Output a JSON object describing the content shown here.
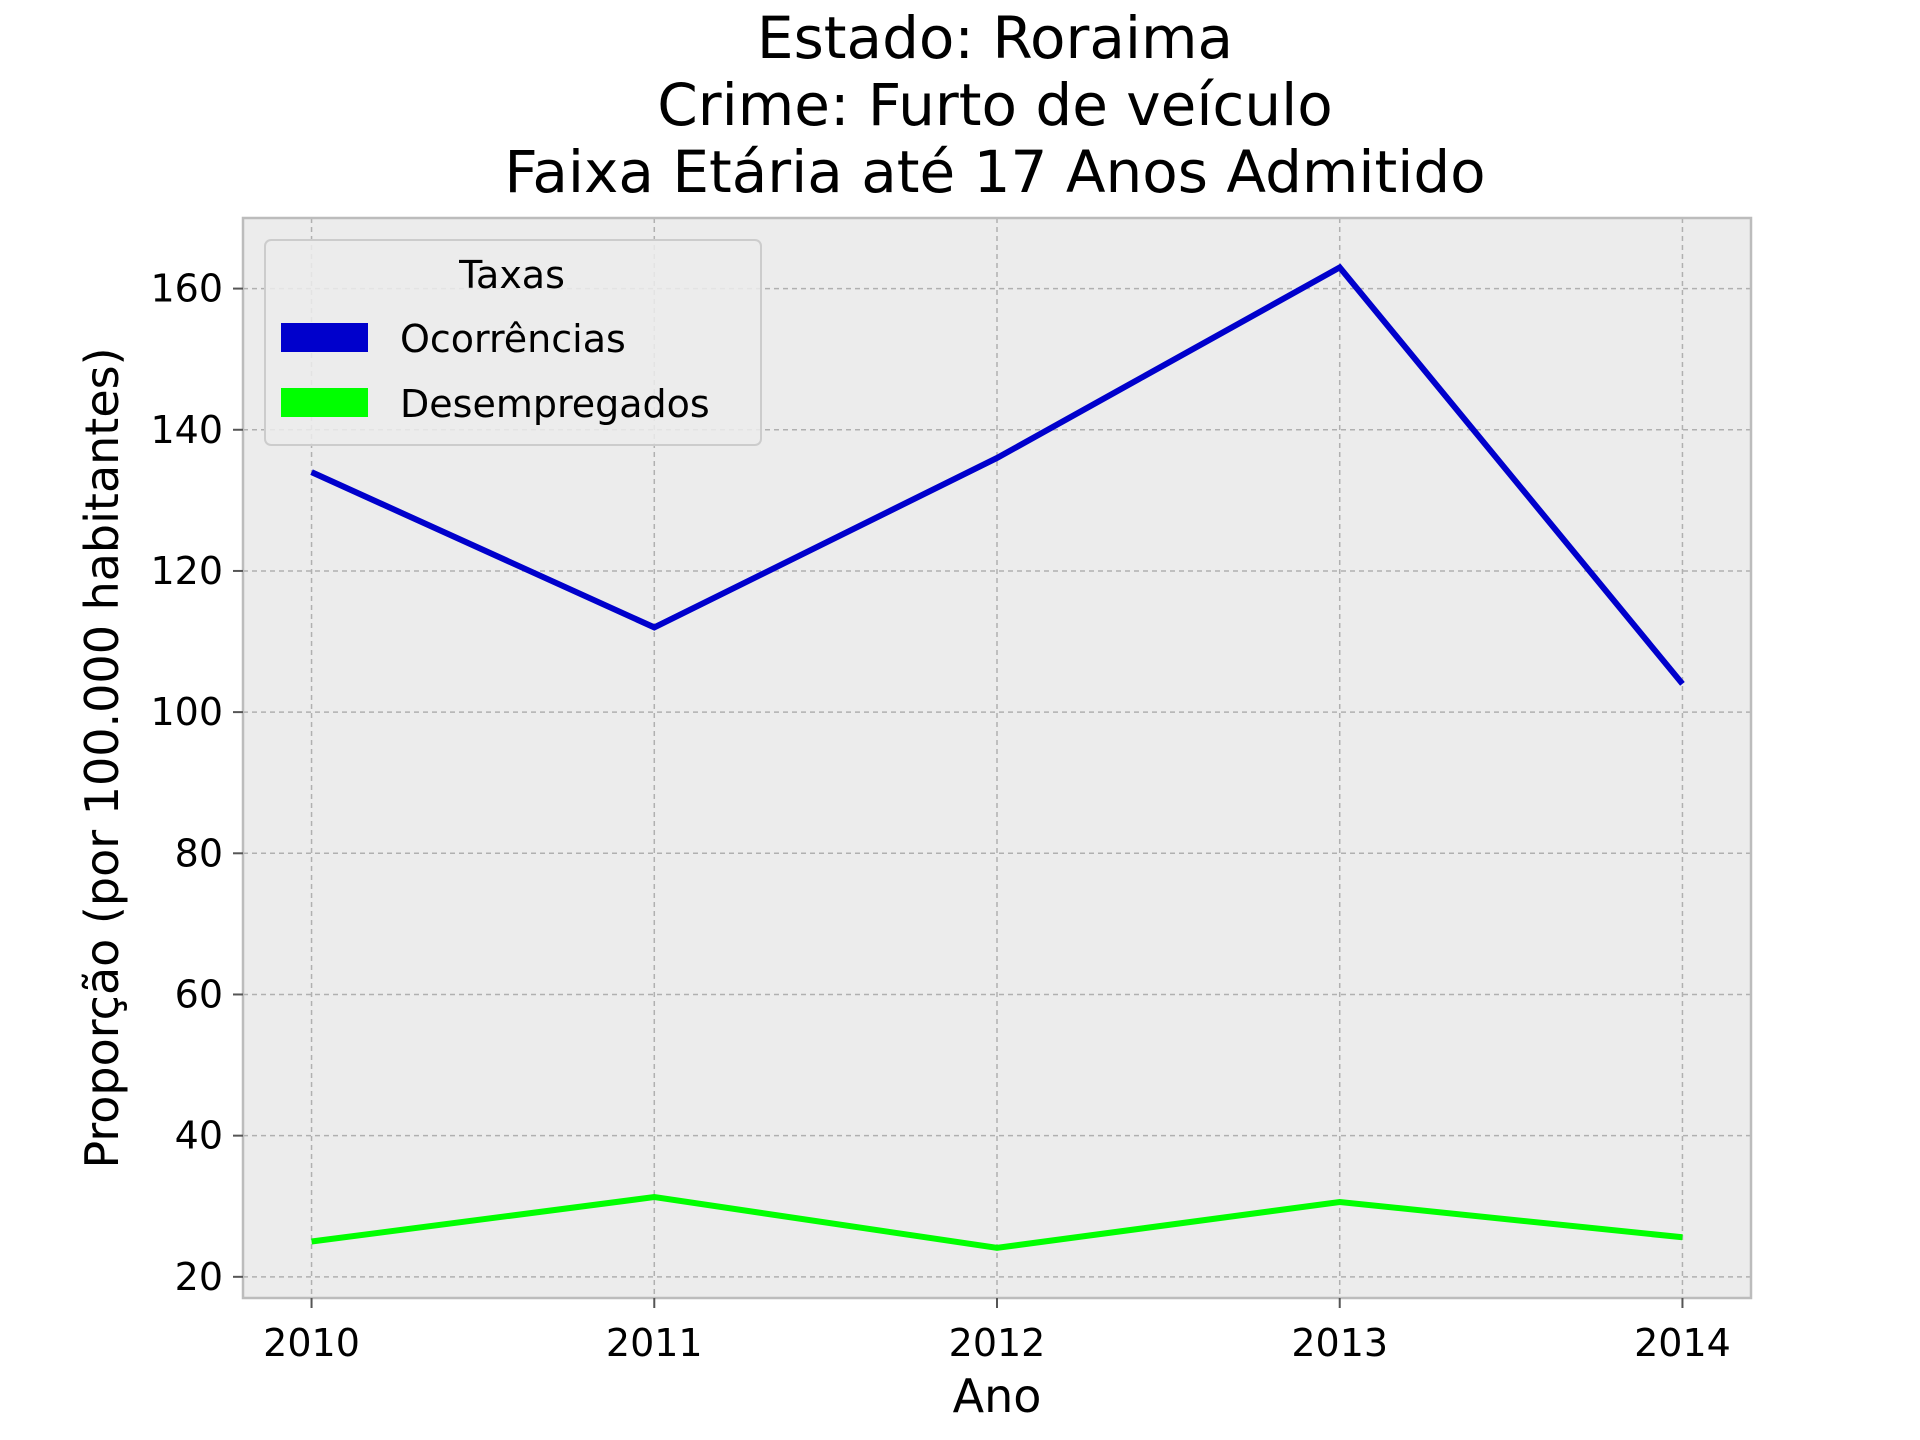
{
  "chart_data": {
    "type": "line",
    "title_lines": [
      "Estado: Roraima",
      "Crime: Furto de veículo",
      "Faixa Etária até 17 Anos   Admitido"
    ],
    "xlabel": "Ano",
    "ylabel": "Proporção (por 100.000 habitantes)",
    "x": [
      2010,
      2011,
      2012,
      2013,
      2014
    ],
    "x_tick_labels": [
      "2010",
      "2011",
      "2012",
      "2013",
      "2014"
    ],
    "y_ticks": [
      20,
      40,
      60,
      80,
      100,
      120,
      140,
      160
    ],
    "y_tick_labels": [
      "20",
      "40",
      "60",
      "80",
      "100",
      "120",
      "140",
      "160"
    ],
    "xlim": [
      2009.8,
      2014.2
    ],
    "ylim": [
      17,
      170
    ],
    "grid": true,
    "background": "#ececec",
    "legend": {
      "title": "Taxas",
      "placement": "top-left"
    },
    "series": [
      {
        "name": "Ocorrências",
        "color": "#0000cc",
        "values": [
          134,
          112,
          136,
          163,
          104
        ]
      },
      {
        "name": "Desempregados",
        "color": "#00ff00",
        "values": [
          25,
          31.3,
          24.1,
          30.6,
          25.6
        ]
      }
    ]
  }
}
